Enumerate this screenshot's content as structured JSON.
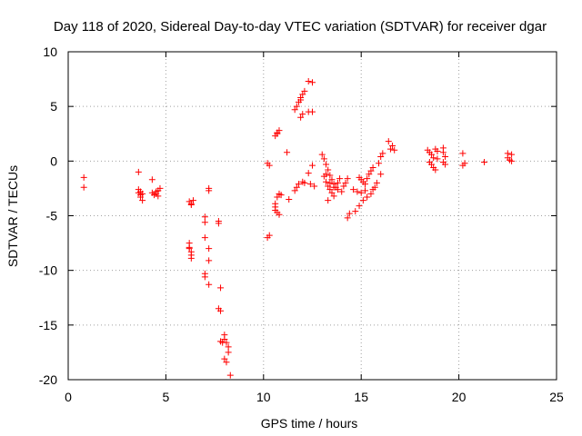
{
  "chart_data": {
    "type": "scatter",
    "title": "Day 118 of 2020, Sidereal Day-to-day VTEC variation (SDTVAR) for receiver dgar",
    "xlabel": "GPS time / hours",
    "ylabel": "SDTVAR / TECUs",
    "xlim": [
      0,
      25
    ],
    "ylim": [
      -20,
      10
    ],
    "xticks": [
      0,
      5,
      10,
      15,
      20,
      25
    ],
    "yticks": [
      -20,
      -15,
      -10,
      -5,
      0,
      5,
      10
    ],
    "xtick_labels": [
      "0",
      "5",
      "10",
      "15",
      "20",
      "25"
    ],
    "ytick_labels": [
      "-20",
      "-15",
      "-10",
      "-5",
      "0",
      "5",
      "10"
    ],
    "grid": true,
    "marker": "+",
    "color": "#ff0000",
    "series": [
      {
        "name": "dgar",
        "points": [
          [
            0.8,
            -1.5
          ],
          [
            0.8,
            -2.4
          ],
          [
            3.6,
            -1.0
          ],
          [
            3.6,
            -2.6
          ],
          [
            3.6,
            -2.9
          ],
          [
            3.7,
            -3.1
          ],
          [
            3.7,
            -3.3
          ],
          [
            3.8,
            -3.6
          ],
          [
            3.7,
            -2.8
          ],
          [
            3.8,
            -3.0
          ],
          [
            4.3,
            -1.7
          ],
          [
            4.3,
            -2.9
          ],
          [
            4.4,
            -3.1
          ],
          [
            4.5,
            -2.8
          ],
          [
            4.6,
            -2.7
          ],
          [
            4.6,
            -3.2
          ],
          [
            4.7,
            -2.5
          ],
          [
            4.5,
            -3.0
          ],
          [
            6.2,
            -3.7
          ],
          [
            6.3,
            -3.9
          ],
          [
            6.3,
            -4.0
          ],
          [
            6.4,
            -3.6
          ],
          [
            6.2,
            -7.5
          ],
          [
            6.2,
            -7.9
          ],
          [
            6.3,
            -8.3
          ],
          [
            6.3,
            -8.6
          ],
          [
            6.2,
            -8.0
          ],
          [
            6.3,
            -8.9
          ],
          [
            7.0,
            -5.1
          ],
          [
            7.0,
            -5.6
          ],
          [
            7.0,
            -7.0
          ],
          [
            7.0,
            -10.3
          ],
          [
            7.0,
            -10.6
          ],
          [
            7.2,
            -2.5
          ],
          [
            7.2,
            -2.7
          ],
          [
            7.2,
            -8.0
          ],
          [
            7.2,
            -9.1
          ],
          [
            7.2,
            -11.3
          ],
          [
            7.7,
            -5.5
          ],
          [
            7.7,
            -5.7
          ],
          [
            7.8,
            -11.6
          ],
          [
            7.7,
            -13.5
          ],
          [
            7.8,
            -13.7
          ],
          [
            7.8,
            -16.5
          ],
          [
            7.9,
            -16.6
          ],
          [
            8.0,
            -15.9
          ],
          [
            8.0,
            -16.3
          ],
          [
            8.1,
            -16.6
          ],
          [
            8.0,
            -18.1
          ],
          [
            8.1,
            -18.4
          ],
          [
            8.2,
            -17.0
          ],
          [
            8.2,
            -17.5
          ],
          [
            8.3,
            -19.6
          ],
          [
            10.2,
            -0.2
          ],
          [
            10.3,
            -0.4
          ],
          [
            10.3,
            -6.8
          ],
          [
            10.2,
            -7.0
          ],
          [
            10.6,
            2.3
          ],
          [
            10.7,
            2.6
          ],
          [
            10.8,
            2.8
          ],
          [
            10.7,
            2.5
          ],
          [
            10.6,
            -3.9
          ],
          [
            10.6,
            -4.5
          ],
          [
            10.7,
            -3.3
          ],
          [
            10.7,
            -4.7
          ],
          [
            10.8,
            -3.0
          ],
          [
            10.8,
            -4.9
          ],
          [
            10.9,
            -3.1
          ],
          [
            10.6,
            -4.2
          ],
          [
            11.2,
            0.8
          ],
          [
            11.3,
            -3.5
          ],
          [
            11.6,
            4.7
          ],
          [
            11.7,
            5.0
          ],
          [
            11.8,
            5.4
          ],
          [
            11.9,
            5.8
          ],
          [
            12.0,
            6.1
          ],
          [
            12.1,
            6.4
          ],
          [
            11.9,
            5.6
          ],
          [
            11.6,
            -2.7
          ],
          [
            11.7,
            -2.4
          ],
          [
            11.8,
            -2.1
          ],
          [
            12.0,
            -1.9
          ],
          [
            12.1,
            -2.0
          ],
          [
            11.9,
            4.0
          ],
          [
            12.0,
            4.3
          ],
          [
            12.3,
            4.5
          ],
          [
            12.5,
            4.5
          ],
          [
            12.3,
            7.3
          ],
          [
            12.5,
            7.2
          ],
          [
            12.5,
            -0.4
          ],
          [
            12.3,
            -1.1
          ],
          [
            12.4,
            -2.1
          ],
          [
            12.6,
            -2.3
          ],
          [
            13.0,
            0.6
          ],
          [
            13.1,
            0.2
          ],
          [
            13.2,
            -0.3
          ],
          [
            13.3,
            -0.8
          ],
          [
            13.4,
            -1.3
          ],
          [
            13.5,
            -1.7
          ],
          [
            13.6,
            -2.1
          ],
          [
            13.7,
            -2.4
          ],
          [
            13.8,
            -2.6
          ],
          [
            13.1,
            -1.4
          ],
          [
            13.2,
            -1.9
          ],
          [
            13.3,
            -2.3
          ],
          [
            13.4,
            -2.6
          ],
          [
            13.5,
            -2.9
          ],
          [
            13.6,
            -3.2
          ],
          [
            13.3,
            -3.6
          ],
          [
            13.2,
            -1.2
          ],
          [
            13.4,
            -2.0
          ],
          [
            13.6,
            -2.4
          ],
          [
            13.8,
            -2.0
          ],
          [
            13.9,
            -1.6
          ],
          [
            14.0,
            -2.8
          ],
          [
            14.1,
            -2.3
          ],
          [
            14.2,
            -2.0
          ],
          [
            14.3,
            -1.6
          ],
          [
            14.4,
            -4.8
          ],
          [
            14.3,
            -5.2
          ],
          [
            14.7,
            -4.6
          ],
          [
            14.9,
            -4.1
          ],
          [
            15.1,
            -3.6
          ],
          [
            15.3,
            -3.3
          ],
          [
            15.5,
            -3.0
          ],
          [
            15.6,
            -2.6
          ],
          [
            14.6,
            -2.6
          ],
          [
            14.8,
            -2.8
          ],
          [
            15.0,
            -2.9
          ],
          [
            15.2,
            -2.7
          ],
          [
            14.9,
            -1.5
          ],
          [
            15.0,
            -1.7
          ],
          [
            15.1,
            -1.9
          ],
          [
            15.2,
            -2.1
          ],
          [
            15.3,
            -1.6
          ],
          [
            15.4,
            -1.2
          ],
          [
            15.5,
            -0.9
          ],
          [
            15.6,
            -0.6
          ],
          [
            15.7,
            -2.4
          ],
          [
            15.8,
            -2.0
          ],
          [
            15.9,
            -0.2
          ],
          [
            16.0,
            0.4
          ],
          [
            16.1,
            0.7
          ],
          [
            16.0,
            -1.2
          ],
          [
            16.4,
            1.8
          ],
          [
            16.5,
            1.1
          ],
          [
            16.6,
            1.4
          ],
          [
            16.7,
            1.0
          ],
          [
            18.4,
            1.0
          ],
          [
            18.5,
            0.8
          ],
          [
            18.6,
            0.6
          ],
          [
            18.7,
            0.3
          ],
          [
            18.8,
            1.1
          ],
          [
            18.9,
            0.9
          ],
          [
            18.5,
            -0.1
          ],
          [
            18.6,
            -0.3
          ],
          [
            18.7,
            -0.6
          ],
          [
            18.8,
            -0.8
          ],
          [
            18.9,
            0.2
          ],
          [
            19.2,
            1.2
          ],
          [
            19.2,
            0.8
          ],
          [
            19.3,
            0.4
          ],
          [
            19.2,
            -0.1
          ],
          [
            19.3,
            -0.3
          ],
          [
            20.2,
            0.7
          ],
          [
            20.3,
            -0.2
          ],
          [
            20.2,
            -0.4
          ],
          [
            21.3,
            -0.1
          ],
          [
            22.5,
            0.7
          ],
          [
            22.5,
            0.3
          ],
          [
            22.6,
            0.1
          ],
          [
            22.7,
            0.6
          ],
          [
            22.7,
            0.0
          ]
        ]
      }
    ]
  }
}
